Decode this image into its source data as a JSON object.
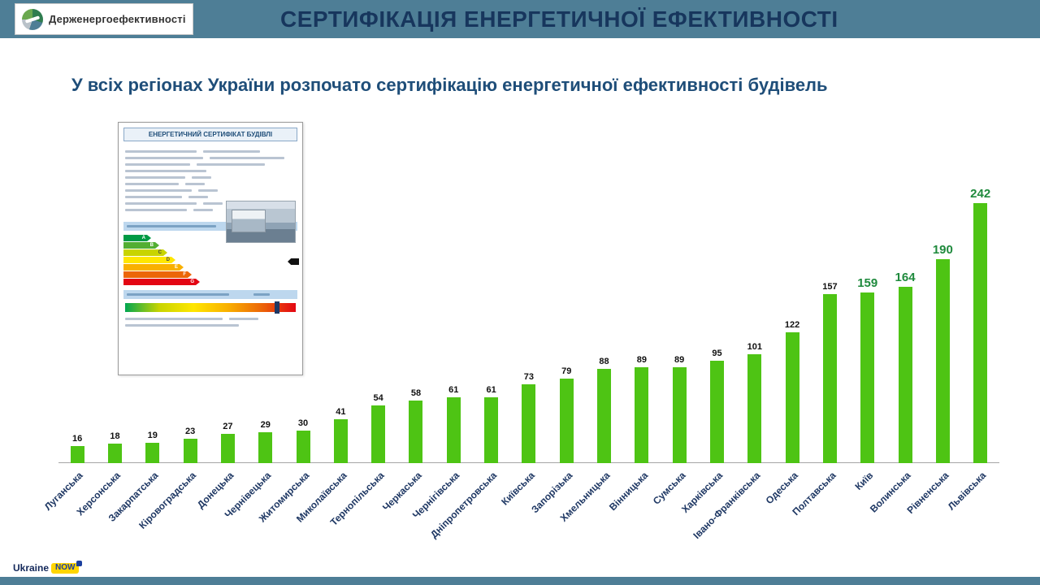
{
  "header": {
    "logo_text": "Держенергоефективності",
    "title": "СЕРТИФІКАЦІЯ ЕНЕРГЕТИЧНОЇ ЕФЕКТИВНОСТІ"
  },
  "subtitle": "У всіх регіонах України розпочато сертифікацію енергетичної ефективності будівель",
  "certificate": {
    "title": "ЕНЕРГЕТИЧНИЙ СЕРТИФІКАТ БУДІВЛІ",
    "letters": [
      "A",
      "B",
      "C",
      "D",
      "E",
      "F",
      "G"
    ]
  },
  "footer": {
    "ukraine": "Ukraine",
    "now": "NOW"
  },
  "colors": {
    "header_bg": "#4e7e96",
    "title_text": "#17365d",
    "subtitle_text": "#1f4e79",
    "bar": "#4ec414",
    "label_default": "#111111",
    "label_highlight": "#1f8a3d",
    "category": "#1f3864"
  },
  "chart_data": {
    "type": "bar",
    "title": "",
    "xlabel": "",
    "ylabel": "",
    "grid": false,
    "legend": false,
    "ylim": [
      0,
      250
    ],
    "highlight_last_n": 4,
    "categories": [
      "Луганська",
      "Херсонська",
      "Закарпатська",
      "Кіровоградська",
      "Донецька",
      "Чернівецька",
      "Житомирська",
      "Миколаївська",
      "Тернопільська",
      "Черкаська",
      "Чернігівська",
      "Дніпропетровська",
      "Київська",
      "Запорізька",
      "Хмельницька",
      "Вінницька",
      "Сумська",
      "Харківська",
      "Івано-Франківська",
      "Одеська",
      "Полтавська",
      "Київ",
      "Волинська",
      "Рівненська",
      "Львівська"
    ],
    "values": [
      16,
      18,
      19,
      23,
      27,
      29,
      30,
      41,
      54,
      58,
      61,
      61,
      73,
      79,
      88,
      89,
      89,
      95,
      101,
      122,
      157,
      159,
      164,
      190,
      242
    ]
  }
}
